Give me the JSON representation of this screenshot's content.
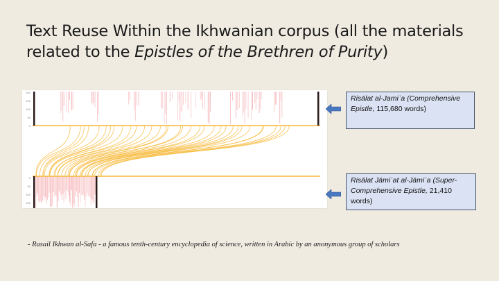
{
  "slide": {
    "title_line1": "Text Reuse Within the Ikhwanian corpus (all the materials",
    "title_line2_prefix": "related to the ",
    "title_line2_italic": "Epistles of the Brethren of Purity",
    "title_line2_suffix": ")",
    "caption": "- Rasail Ikhwan al-Safa - a famous tenth-century encyclopedia of science, written in Arabic by an anonymous group of scholars"
  },
  "callouts": {
    "top": {
      "italic": "Risālat al-Jamiʿa (Comprehensive Epistle,",
      "plain": " 115,680 words)"
    },
    "bottom": {
      "italic": "Risālat Jāmiʿat al-Jāmiʿa (Super-Comprehensive Epistle,",
      "plain": " 21,410 words)"
    }
  },
  "figure": {
    "top_axis_ticks": [
      "200",
      "150",
      "100",
      "50",
      "0"
    ],
    "bottom_axis_ticks": [
      "0",
      "50",
      "100",
      "150"
    ],
    "colors": {
      "link": "#f7b733",
      "pink": "#f6b9bc",
      "arrow": "#4a78c0"
    }
  }
}
